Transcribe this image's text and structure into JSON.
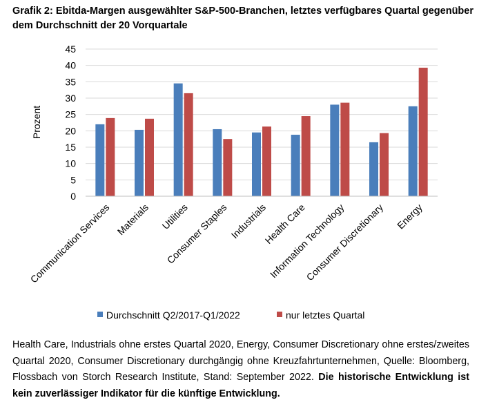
{
  "title": "Grafik 2: Ebitda-Margen ausgewählter S&P-500-Branchen, letztes verfügbares Quartal gegenüber dem Durchschnitt der 20 Vorquartale",
  "caption": {
    "text": "Health Care, Industrials ohne erstes Quartal 2020, Energy, Consumer Discretionary ohne erstes/zweites Quartal 2020, Consumer Discretionary durchgängig ohne Kreuzfahrtunternehmen, Quelle: Bloomberg, Flossbach von Storch Research Institute, Stand: September 2022. ",
    "bold": "Die historische Entwicklung ist kein zuverlässiger Indikator für die künftige Entwicklung."
  },
  "colors": {
    "series1": "#4a7ebb",
    "series2": "#be4b48",
    "grid": "#d9d9d9",
    "axis": "#bfbfbf"
  },
  "chart_data": {
    "type": "bar",
    "title": "Ebitda-Margen ausgewählter S&P-500-Branchen",
    "xlabel": "",
    "ylabel": "Prozent",
    "ylim": [
      0,
      45
    ],
    "yticks": [
      0,
      5,
      10,
      15,
      20,
      25,
      30,
      35,
      40,
      45
    ],
    "grid": true,
    "legend": "bottom",
    "categories": [
      "Communication Services",
      "Materials",
      "Utilities",
      "Consumer Staples",
      "Industrials",
      "Health Care",
      "Information Technology",
      "Consumer Discretionary",
      "Energy"
    ],
    "series": [
      {
        "name": "Durchschnitt Q2/2017-Q1/2022",
        "values": [
          22.0,
          20.3,
          34.5,
          20.5,
          19.5,
          18.8,
          28.0,
          16.5,
          27.5
        ]
      },
      {
        "name": "nur letztes Quartal",
        "values": [
          23.9,
          23.7,
          31.5,
          17.5,
          21.3,
          24.5,
          28.6,
          19.3,
          39.3
        ]
      }
    ]
  }
}
